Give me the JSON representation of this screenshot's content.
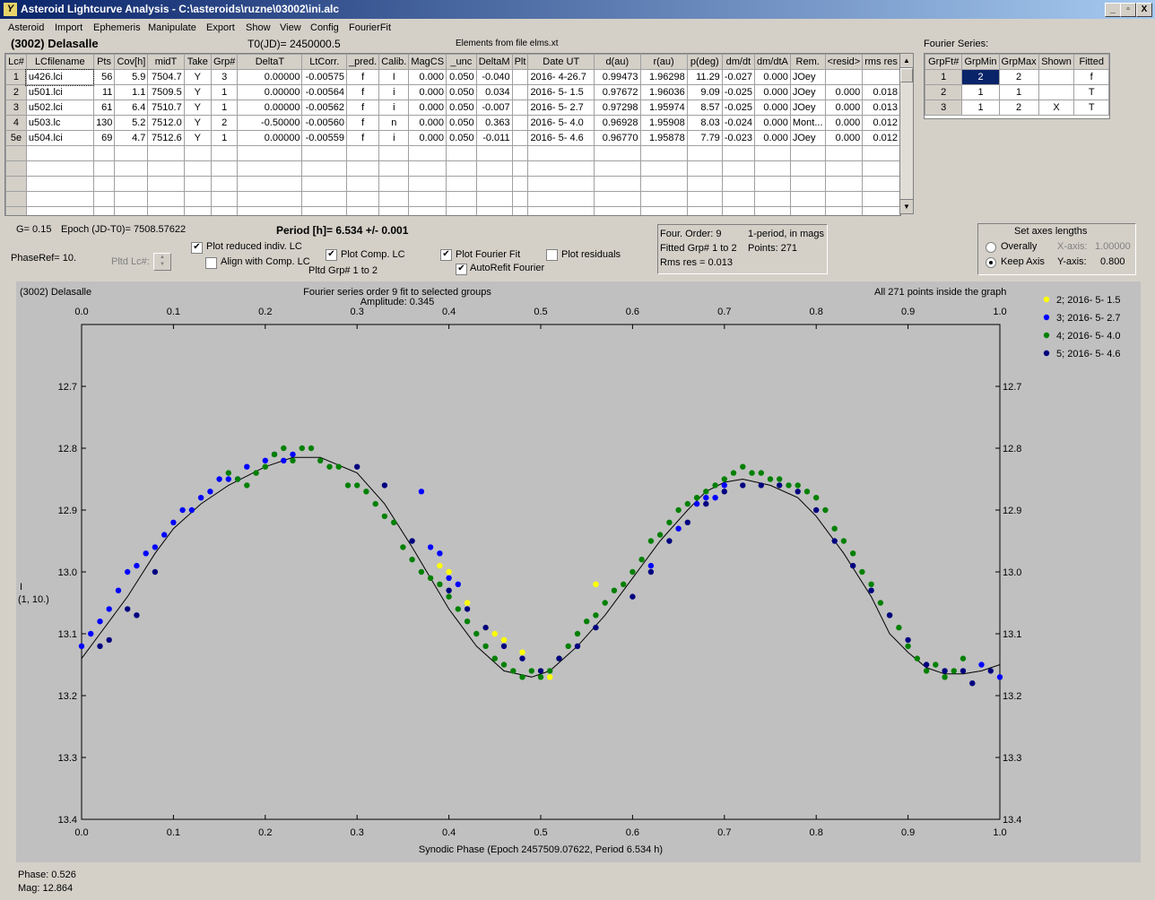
{
  "window": {
    "title": "Asteroid Lightcurve Analysis - C:\\asteroids\\ruzne\\03002\\ini.alc",
    "icon_glyph": "Y",
    "min": "_",
    "max": "▫",
    "close": "X"
  },
  "menu": [
    "Asteroid",
    "Import",
    "Ephemeris",
    "Manipulate",
    "Export",
    "Show",
    "View",
    "Config",
    "FourierFit"
  ],
  "header": {
    "asteroid": "(3002) Delasalle",
    "t0": "T0(JD)= 2450000.5",
    "elements": "Elements from file elms.xt"
  },
  "lc_table": {
    "columns": [
      "Lc#",
      "LCfilename",
      "Pts",
      "Cov[h]",
      "midT",
      "Take",
      "Grp#",
      "DeltaT",
      "LtCorr.",
      "_pred.",
      "Calib.",
      "MagCS",
      "_unc",
      "DeltaM",
      "Plt",
      "Date UT",
      "d(au)",
      "r(au)",
      "p(deg)",
      "dm/dt",
      "dm/dtA",
      "Rem.",
      "<resid>",
      "rms res"
    ],
    "rows": [
      [
        "1",
        "u426.lci",
        "56",
        "5.9",
        "7504.7",
        "Y",
        "3",
        "0.00000",
        "-0.00575",
        "f",
        "I",
        "0.000",
        "0.050",
        "-0.040",
        "",
        "2016- 4-26.7",
        "0.99473",
        "1.96298",
        "11.29",
        "-0.027",
        "0.000",
        "JOey",
        "",
        ""
      ],
      [
        "2",
        "u501.lci",
        "11",
        "1.1",
        "7509.5",
        "Y",
        "1",
        "0.00000",
        "-0.00564",
        "f",
        "i",
        "0.000",
        "0.050",
        "0.034",
        "",
        "2016- 5- 1.5",
        "0.97672",
        "1.96036",
        "9.09",
        "-0.025",
        "0.000",
        "JOey",
        "0.000",
        "0.018"
      ],
      [
        "3",
        "u502.lci",
        "61",
        "6.4",
        "7510.7",
        "Y",
        "1",
        "0.00000",
        "-0.00562",
        "f",
        "i",
        "0.000",
        "0.050",
        "-0.007",
        "",
        "2016- 5- 2.7",
        "0.97298",
        "1.95974",
        "8.57",
        "-0.025",
        "0.000",
        "JOey",
        "0.000",
        "0.013"
      ],
      [
        "4",
        "u503.lc",
        "130",
        "5.2",
        "7512.0",
        "Y",
        "2",
        "-0.50000",
        "-0.00560",
        "f",
        "n",
        "0.000",
        "0.050",
        "0.363",
        "",
        "2016- 5- 4.0",
        "0.96928",
        "1.95908",
        "8.03",
        "-0.024",
        "0.000",
        "Mont...",
        "0.000",
        "0.012"
      ],
      [
        "5e",
        "u504.lci",
        "69",
        "4.7",
        "7512.6",
        "Y",
        "1",
        "0.00000",
        "-0.00559",
        "f",
        "i",
        "0.000",
        "0.050",
        "-0.011",
        "",
        "2016- 5- 4.6",
        "0.96770",
        "1.95878",
        "7.79",
        "-0.023",
        "0.000",
        "JOey",
        "0.000",
        "0.012"
      ]
    ]
  },
  "fourier_table": {
    "caption": "Fourier Series:",
    "columns": [
      "GrpFt#",
      "GrpMin",
      "GrpMax",
      "Shown",
      "Fitted"
    ],
    "rows": [
      [
        "1",
        "2",
        "2",
        "",
        "f"
      ],
      [
        "2",
        "1",
        "1",
        "",
        "T"
      ],
      [
        "3",
        "1",
        "2",
        "X",
        "T"
      ]
    ]
  },
  "controls": {
    "g": "G= 0.15",
    "epoch": "Epoch (JD-T0)= 7508.57622",
    "period": "Period [h]= 6.534 +/- 0.001",
    "phaseref": "PhaseRef= 10.",
    "pltd_lc": "Pltd Lc#:",
    "plot_reduced": "Plot reduced indiv. LC",
    "align_comp": "Align with Comp. LC",
    "plot_comp": "Plot Comp. LC",
    "pltd_grp": "Pltd Grp#  1   to   2",
    "plot_fourier": "Plot Fourier Fit",
    "autorefit": "AutoRefit Fourier",
    "plot_residuals": "Plot residuals",
    "check_mark": "✔"
  },
  "fit_info": {
    "order": "Four. Order:  9",
    "mode": "1-period, in mags",
    "fitted": "Fitted Grp# 1 to 2",
    "points": "Points: 271",
    "rms": "Rms res     = 0.013"
  },
  "axes_box": {
    "title": "Set axes lengths",
    "overally": "Overally",
    "keep": "Keep Axis",
    "xaxis_label": "X-axis:",
    "xaxis_val": "1.00000",
    "yaxis_label": "Y-axis:",
    "yaxis_val": "0.800"
  },
  "status": {
    "phase": "Phase:  0.526",
    "mag": "Mag:   12.864"
  },
  "chart_data": {
    "type": "scatter",
    "title": "(3002) Delasalle",
    "subtitle": "Fourier series order 9 fit to selected groups",
    "amplitude": "Amplitude: 0.345",
    "note": "All 271 points inside the graph",
    "xlabel": "Synodic Phase (Epoch 2457509.07622, Period 6.534 h)",
    "ylabel": "I",
    "ylabel2": "(1, 10.)",
    "xlim": [
      0.0,
      1.0
    ],
    "ylim": [
      12.6,
      13.4
    ],
    "y_inverted": true,
    "xticks": [
      "0.0",
      "0.1",
      "0.2",
      "0.3",
      "0.4",
      "0.5",
      "0.6",
      "0.7",
      "0.8",
      "0.9",
      "1.0"
    ],
    "yticks": [
      "12.7",
      "12.8",
      "12.9",
      "13.0",
      "13.1",
      "13.2",
      "13.3",
      "13.4"
    ],
    "curve": {
      "x": [
        0.0,
        0.02,
        0.05,
        0.08,
        0.1,
        0.13,
        0.16,
        0.2,
        0.23,
        0.26,
        0.3,
        0.33,
        0.36,
        0.4,
        0.43,
        0.46,
        0.49,
        0.51,
        0.54,
        0.57,
        0.6,
        0.63,
        0.66,
        0.68,
        0.7,
        0.72,
        0.75,
        0.78,
        0.8,
        0.83,
        0.86,
        0.88,
        0.9,
        0.92,
        0.94,
        0.96,
        0.98,
        1.0
      ],
      "y": [
        13.14,
        13.1,
        13.04,
        12.97,
        12.93,
        12.89,
        12.86,
        12.83,
        12.815,
        12.815,
        12.84,
        12.89,
        12.96,
        13.06,
        13.12,
        13.16,
        13.17,
        13.16,
        13.12,
        13.07,
        13.01,
        12.95,
        12.9,
        12.87,
        12.855,
        12.85,
        12.86,
        12.88,
        12.91,
        12.97,
        13.04,
        13.1,
        13.13,
        13.155,
        13.165,
        13.165,
        13.16,
        13.15
      ]
    },
    "series": [
      {
        "name": "2; 2016- 5- 1.5",
        "color": "#ffff00",
        "x": [
          0.39,
          0.4,
          0.42,
          0.44,
          0.45,
          0.46,
          0.48,
          0.5,
          0.51,
          0.52,
          0.56
        ],
        "y": [
          12.99,
          13.0,
          13.05,
          13.09,
          13.1,
          13.11,
          13.13,
          13.16,
          13.17,
          13.14,
          13.02
        ]
      },
      {
        "name": "3; 2016- 5- 2.7",
        "color": "#0000ff",
        "x": [
          0.0,
          0.01,
          0.02,
          0.03,
          0.04,
          0.05,
          0.06,
          0.07,
          0.08,
          0.09,
          0.1,
          0.11,
          0.12,
          0.13,
          0.14,
          0.15,
          0.16,
          0.17,
          0.18,
          0.2,
          0.21,
          0.22,
          0.23,
          0.37,
          0.38,
          0.39,
          0.4,
          0.41,
          0.62,
          0.65,
          0.67,
          0.68,
          0.69,
          0.7,
          0.98,
          1.0
        ],
        "y": [
          13.12,
          13.1,
          13.08,
          13.06,
          13.03,
          13.0,
          12.99,
          12.97,
          12.96,
          12.94,
          12.92,
          12.9,
          12.9,
          12.88,
          12.87,
          12.85,
          12.85,
          12.85,
          12.83,
          12.82,
          12.81,
          12.82,
          12.81,
          12.87,
          12.96,
          12.97,
          13.01,
          13.02,
          12.99,
          12.93,
          12.89,
          12.88,
          12.88,
          12.86,
          13.15,
          13.17
        ]
      },
      {
        "name": "4; 2016- 5- 4.0",
        "color": "#008000",
        "x": [
          0.16,
          0.17,
          0.18,
          0.19,
          0.2,
          0.21,
          0.22,
          0.23,
          0.24,
          0.25,
          0.26,
          0.27,
          0.28,
          0.29,
          0.3,
          0.31,
          0.32,
          0.33,
          0.34,
          0.35,
          0.36,
          0.37,
          0.38,
          0.39,
          0.4,
          0.41,
          0.42,
          0.43,
          0.44,
          0.45,
          0.46,
          0.47,
          0.48,
          0.49,
          0.5,
          0.51,
          0.52,
          0.53,
          0.54,
          0.55,
          0.56,
          0.57,
          0.58,
          0.59,
          0.6,
          0.61,
          0.62,
          0.63,
          0.64,
          0.65,
          0.66,
          0.67,
          0.68,
          0.69,
          0.7,
          0.71,
          0.72,
          0.73,
          0.74,
          0.75,
          0.76,
          0.77,
          0.78,
          0.79,
          0.8,
          0.81,
          0.82,
          0.83,
          0.84,
          0.85,
          0.86,
          0.87,
          0.88,
          0.89,
          0.9,
          0.91,
          0.92,
          0.93,
          0.94,
          0.95,
          0.96
        ],
        "y": [
          12.84,
          12.85,
          12.86,
          12.84,
          12.83,
          12.81,
          12.8,
          12.82,
          12.8,
          12.8,
          12.82,
          12.83,
          12.83,
          12.86,
          12.86,
          12.87,
          12.89,
          12.91,
          12.92,
          12.96,
          12.98,
          13.0,
          13.01,
          13.02,
          13.04,
          13.06,
          13.08,
          13.1,
          13.12,
          13.14,
          13.15,
          13.16,
          13.17,
          13.16,
          13.17,
          13.16,
          13.14,
          13.12,
          13.1,
          13.08,
          13.07,
          13.05,
          13.03,
          13.02,
          13.0,
          12.98,
          12.95,
          12.94,
          12.92,
          12.9,
          12.89,
          12.88,
          12.87,
          12.86,
          12.85,
          12.84,
          12.83,
          12.84,
          12.84,
          12.85,
          12.85,
          12.86,
          12.86,
          12.87,
          12.88,
          12.9,
          12.93,
          12.95,
          12.97,
          13.0,
          13.02,
          13.05,
          13.07,
          13.09,
          13.12,
          13.14,
          13.16,
          13.15,
          13.17,
          13.16,
          13.14
        ]
      },
      {
        "name": "5; 2016- 5- 4.6",
        "color": "#000080",
        "x": [
          0.02,
          0.03,
          0.05,
          0.06,
          0.08,
          0.3,
          0.33,
          0.36,
          0.4,
          0.42,
          0.44,
          0.46,
          0.48,
          0.5,
          0.52,
          0.54,
          0.56,
          0.6,
          0.62,
          0.64,
          0.66,
          0.68,
          0.7,
          0.72,
          0.74,
          0.76,
          0.78,
          0.8,
          0.82,
          0.84,
          0.86,
          0.88,
          0.9,
          0.92,
          0.94,
          0.96,
          0.97,
          0.99
        ],
        "y": [
          13.12,
          13.11,
          13.06,
          13.07,
          13.0,
          12.83,
          12.86,
          12.95,
          13.03,
          13.06,
          13.09,
          13.12,
          13.14,
          13.16,
          13.14,
          13.12,
          13.09,
          13.04,
          13.0,
          12.95,
          12.92,
          12.89,
          12.87,
          12.86,
          12.86,
          12.86,
          12.87,
          12.9,
          12.95,
          12.99,
          13.03,
          13.07,
          13.11,
          13.15,
          13.16,
          13.16,
          13.18,
          13.16
        ]
      }
    ]
  }
}
